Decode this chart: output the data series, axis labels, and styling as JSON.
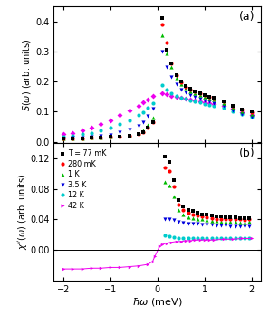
{
  "title_a": "(a)",
  "title_b": "(b)",
  "xlabel": "$\\hbar\\omega$ (meV)",
  "ylabel_a": "$S(\\omega)$ (arb. units)",
  "ylabel_b": "$\\chi^{\\prime\\prime}(\\omega)$ (arb. units)",
  "xlim": [
    -2.2,
    2.2
  ],
  "ylim_a": [
    -0.005,
    0.45
  ],
  "ylim_b": [
    -0.04,
    0.14
  ],
  "yticks_a": [
    0.0,
    0.1,
    0.2,
    0.3,
    0.4
  ],
  "yticks_b": [
    0.0,
    0.04,
    0.08,
    0.12
  ],
  "xticks": [
    -2,
    -1,
    0,
    1,
    2
  ],
  "temperatures": [
    "T = 77 mK",
    "280 mK",
    "1 K",
    "3.5 K",
    "12 K",
    "42 K"
  ],
  "colors": [
    "#000000",
    "#ff0000",
    "#00bb00",
    "#0000dd",
    "#00cccc",
    "#ee00ee"
  ],
  "markers_a": [
    "s",
    "o",
    "^",
    "v",
    "o",
    "D"
  ],
  "markers_b": [
    "s",
    "o",
    "^",
    "v",
    "o",
    "D"
  ],
  "S_omega": {
    "77mK": {
      "x": [
        -2.0,
        -1.8,
        -1.6,
        -1.4,
        -1.2,
        -1.0,
        -0.8,
        -0.6,
        -0.4,
        -0.3,
        -0.2,
        -0.1,
        0.1,
        0.2,
        0.3,
        0.4,
        0.5,
        0.6,
        0.7,
        0.8,
        0.9,
        1.0,
        1.1,
        1.2,
        1.4,
        1.6,
        1.8,
        2.0
      ],
      "y": [
        0.01,
        0.011,
        0.012,
        0.013,
        0.014,
        0.016,
        0.018,
        0.021,
        0.026,
        0.033,
        0.046,
        0.066,
        0.41,
        0.305,
        0.26,
        0.22,
        0.2,
        0.185,
        0.175,
        0.168,
        0.162,
        0.156,
        0.15,
        0.145,
        0.135,
        0.12,
        0.108,
        0.1
      ]
    },
    "280mK": {
      "x": [
        -2.0,
        -1.8,
        -1.6,
        -1.4,
        -1.2,
        -1.0,
        -0.8,
        -0.6,
        -0.4,
        -0.3,
        -0.2,
        -0.1,
        0.1,
        0.2,
        0.3,
        0.4,
        0.5,
        0.6,
        0.7,
        0.8,
        0.9,
        1.0,
        1.1,
        1.2,
        1.4,
        1.6,
        1.8,
        2.0
      ],
      "y": [
        0.01,
        0.011,
        0.012,
        0.013,
        0.014,
        0.016,
        0.018,
        0.021,
        0.026,
        0.033,
        0.046,
        0.066,
        0.39,
        0.33,
        0.26,
        0.22,
        0.198,
        0.183,
        0.173,
        0.166,
        0.16,
        0.154,
        0.149,
        0.143,
        0.133,
        0.118,
        0.106,
        0.098
      ]
    },
    "1K": {
      "x": [
        -2.0,
        -1.8,
        -1.6,
        -1.4,
        -1.2,
        -1.0,
        -0.8,
        -0.6,
        -0.4,
        -0.3,
        -0.2,
        -0.1,
        0.1,
        0.2,
        0.3,
        0.4,
        0.5,
        0.6,
        0.7,
        0.8,
        0.9,
        1.0,
        1.1,
        1.2,
        1.4,
        1.6,
        1.8,
        2.0
      ],
      "y": [
        0.01,
        0.011,
        0.012,
        0.013,
        0.014,
        0.016,
        0.019,
        0.023,
        0.03,
        0.038,
        0.055,
        0.08,
        0.355,
        0.295,
        0.248,
        0.213,
        0.192,
        0.178,
        0.168,
        0.161,
        0.155,
        0.149,
        0.144,
        0.139,
        0.128,
        0.113,
        0.1,
        0.092
      ]
    },
    "3.5K": {
      "x": [
        -2.0,
        -1.8,
        -1.6,
        -1.4,
        -1.2,
        -1.0,
        -0.8,
        -0.6,
        -0.4,
        -0.3,
        -0.2,
        -0.1,
        0.1,
        0.2,
        0.3,
        0.4,
        0.5,
        0.6,
        0.7,
        0.8,
        0.9,
        1.0,
        1.1,
        1.2,
        1.4,
        1.6,
        1.8,
        2.0
      ],
      "y": [
        0.012,
        0.013,
        0.015,
        0.017,
        0.02,
        0.024,
        0.031,
        0.04,
        0.054,
        0.065,
        0.085,
        0.11,
        0.3,
        0.25,
        0.215,
        0.19,
        0.174,
        0.163,
        0.155,
        0.148,
        0.143,
        0.138,
        0.133,
        0.128,
        0.118,
        0.105,
        0.092,
        0.084
      ]
    },
    "12K": {
      "x": [
        -2.0,
        -1.8,
        -1.6,
        -1.4,
        -1.2,
        -1.0,
        -0.8,
        -0.6,
        -0.4,
        -0.3,
        -0.2,
        -0.1,
        0.1,
        0.2,
        0.3,
        0.4,
        0.5,
        0.6,
        0.7,
        0.8,
        0.9,
        1.0,
        1.1,
        1.2,
        1.4,
        1.6,
        1.8,
        2.0
      ],
      "y": [
        0.018,
        0.021,
        0.025,
        0.03,
        0.037,
        0.046,
        0.058,
        0.072,
        0.088,
        0.099,
        0.113,
        0.128,
        0.188,
        0.172,
        0.162,
        0.153,
        0.147,
        0.142,
        0.138,
        0.134,
        0.13,
        0.126,
        0.122,
        0.119,
        0.112,
        0.102,
        0.091,
        0.082
      ]
    },
    "42K": {
      "x": [
        -2.0,
        -1.8,
        -1.6,
        -1.4,
        -1.2,
        -1.0,
        -0.8,
        -0.6,
        -0.4,
        -0.3,
        -0.2,
        -0.1,
        0.1,
        0.2,
        0.3,
        0.4,
        0.5,
        0.6,
        0.7,
        0.8,
        0.9,
        1.0,
        1.1,
        1.2,
        1.4,
        1.6,
        1.8,
        2.0
      ],
      "y": [
        0.025,
        0.03,
        0.037,
        0.046,
        0.058,
        0.072,
        0.088,
        0.104,
        0.12,
        0.13,
        0.141,
        0.152,
        0.16,
        0.157,
        0.153,
        0.149,
        0.146,
        0.143,
        0.141,
        0.138,
        0.135,
        0.132,
        0.129,
        0.126,
        0.119,
        0.11,
        0.099,
        0.09
      ]
    }
  },
  "chi_omega": {
    "77mK": {
      "x": [
        0.15,
        0.25,
        0.35,
        0.45,
        0.55,
        0.65,
        0.75,
        0.85,
        0.95,
        1.05,
        1.15,
        1.25,
        1.35,
        1.45,
        1.55,
        1.65,
        1.75,
        1.85,
        1.95
      ],
      "y": [
        0.122,
        0.115,
        0.092,
        0.065,
        0.057,
        0.053,
        0.051,
        0.049,
        0.047,
        0.046,
        0.045,
        0.044,
        0.044,
        0.043,
        0.043,
        0.043,
        0.042,
        0.042,
        0.042
      ]
    },
    "280mK": {
      "x": [
        0.15,
        0.25,
        0.35,
        0.45,
        0.55,
        0.65,
        0.75,
        0.85,
        0.95,
        1.05,
        1.15,
        1.25,
        1.35,
        1.45,
        1.55,
        1.65,
        1.75,
        1.85,
        1.95
      ],
      "y": [
        0.108,
        0.103,
        0.083,
        0.059,
        0.052,
        0.049,
        0.047,
        0.045,
        0.044,
        0.043,
        0.042,
        0.041,
        0.041,
        0.04,
        0.04,
        0.04,
        0.04,
        0.039,
        0.04
      ]
    },
    "1K": {
      "x": [
        0.15,
        0.25,
        0.35,
        0.45,
        0.55,
        0.65,
        0.75,
        0.85,
        0.95,
        1.05,
        1.15,
        1.25,
        1.35,
        1.45,
        1.55,
        1.65,
        1.75,
        1.85,
        1.95
      ],
      "y": [
        0.089,
        0.085,
        0.07,
        0.052,
        0.046,
        0.043,
        0.042,
        0.041,
        0.04,
        0.039,
        0.038,
        0.038,
        0.037,
        0.037,
        0.037,
        0.037,
        0.036,
        0.036,
        0.037
      ]
    },
    "3.5K": {
      "x": [
        0.15,
        0.25,
        0.35,
        0.45,
        0.55,
        0.65,
        0.75,
        0.85,
        0.95,
        1.05,
        1.15,
        1.25,
        1.35,
        1.45,
        1.55,
        1.65,
        1.75,
        1.85,
        1.95
      ],
      "y": [
        0.041,
        0.04,
        0.039,
        0.037,
        0.036,
        0.035,
        0.034,
        0.034,
        0.033,
        0.033,
        0.033,
        0.032,
        0.032,
        0.032,
        0.031,
        0.031,
        0.031,
        0.031,
        0.031
      ]
    },
    "12K": {
      "x": [
        0.15,
        0.25,
        0.35,
        0.45,
        0.55,
        0.65,
        0.75,
        0.85,
        0.95,
        1.05,
        1.15,
        1.25,
        1.35,
        1.45,
        1.55,
        1.65,
        1.75,
        1.85,
        1.95
      ],
      "y": [
        0.019,
        0.018,
        0.017,
        0.016,
        0.016,
        0.015,
        0.015,
        0.015,
        0.015,
        0.015,
        0.015,
        0.015,
        0.015,
        0.015,
        0.015,
        0.015,
        0.015,
        0.015,
        0.015
      ]
    },
    "42K": {
      "x": [
        -2.0,
        -1.8,
        -1.6,
        -1.4,
        -1.2,
        -1.0,
        -0.8,
        -0.6,
        -0.4,
        -0.2,
        -0.1,
        -0.05,
        0.05,
        0.1,
        0.2,
        0.3,
        0.4,
        0.5,
        0.6,
        0.7,
        0.8,
        0.9,
        1.0,
        1.1,
        1.2,
        1.4,
        1.6,
        1.8,
        2.0
      ],
      "y": [
        -0.025,
        -0.025,
        -0.025,
        -0.024,
        -0.024,
        -0.023,
        -0.023,
        -0.022,
        -0.021,
        -0.019,
        -0.015,
        -0.008,
        0.005,
        0.007,
        0.009,
        0.01,
        0.011,
        0.011,
        0.012,
        0.012,
        0.013,
        0.013,
        0.013,
        0.013,
        0.013,
        0.014,
        0.014,
        0.015,
        0.015
      ]
    }
  }
}
